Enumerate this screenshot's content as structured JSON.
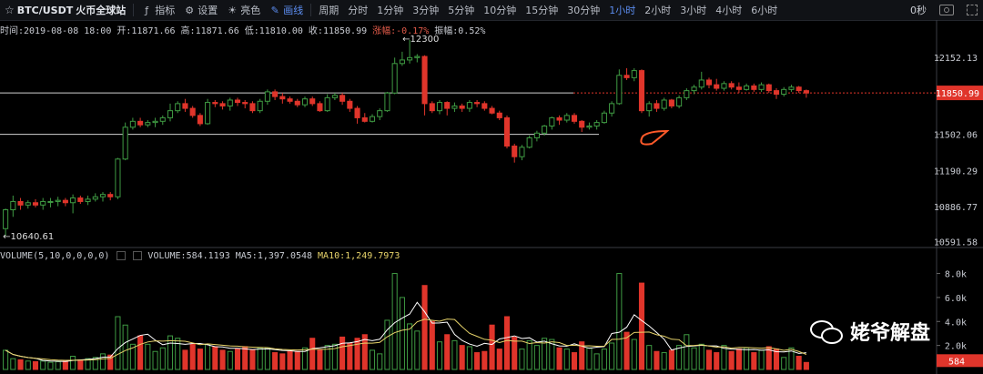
{
  "toolbar": {
    "symbol": "BTC/USDT",
    "exchange": "火币全球站",
    "indicators": "指标",
    "settings": "设置",
    "color": "亮色",
    "draw": "画线",
    "period_label": "周期",
    "periods": [
      "分时",
      "1分钟",
      "3分钟",
      "5分钟",
      "10分钟",
      "15分钟",
      "30分钟",
      "1小时",
      "2小时",
      "3小时",
      "4小时",
      "6小时"
    ],
    "active_period": "1小时",
    "countdown": "0秒"
  },
  "ohlc": {
    "time": "时间:2019-08-08 18:00",
    "open": "开:11871.66",
    "high": "高:11871.66",
    "low": "低:11810.00",
    "close": "收:11850.99",
    "change": "涨幅:-0.17%",
    "amplitude": "振幅:0.52%"
  },
  "volume_legend": {
    "title": "VOLUME(5,10,0,0,0,0)",
    "volume": "VOLUME:584.1193",
    "ma5": "MA5:1,397.0548",
    "ma10": "MA10:1,249.7973"
  },
  "colors": {
    "up": "#3f9b43",
    "down": "#e0352b",
    "ma5": "#ffffff",
    "ma10": "#e7d36a",
    "accent": "#5c8df0",
    "annotation": "#ff5a2a"
  },
  "chart_data": {
    "type": "candlestick",
    "price_axis_ticks": [
      "12152.13",
      "11850.99",
      "11502.06",
      "11190.29",
      "10886.77",
      "10591.58"
    ],
    "current_price": "11850.99",
    "annotations": {
      "high": "←12300",
      "low": "←10640.61"
    },
    "volume_axis_ticks": [
      "8.0k",
      "6.0k",
      "4.0k",
      "2.0k"
    ],
    "current_volume": "584",
    "horizontal_lines": [
      11851,
      11500
    ],
    "candles": [
      [
        10700,
        10860,
        10640,
        10870
      ],
      [
        10860,
        10930,
        10800,
        10980
      ],
      [
        10930,
        10900,
        10860,
        10960
      ],
      [
        10900,
        10920,
        10870,
        10940
      ],
      [
        10920,
        10900,
        10880,
        10950
      ],
      [
        10900,
        10930,
        10860,
        10960
      ],
      [
        10930,
        10930,
        10880,
        10960
      ],
      [
        10930,
        10940,
        10890,
        10970
      ],
      [
        10940,
        10920,
        10890,
        10960
      ],
      [
        10920,
        10960,
        10830,
        10990
      ],
      [
        10960,
        10930,
        10910,
        10980
      ],
      [
        10930,
        10950,
        10900,
        10980
      ],
      [
        10950,
        10970,
        10930,
        11000
      ],
      [
        10970,
        10990,
        10930,
        11010
      ],
      [
        10990,
        10970,
        10940,
        11010
      ],
      [
        10970,
        11290,
        10950,
        11300
      ],
      [
        11290,
        11560,
        11280,
        11600
      ],
      [
        11560,
        11610,
        11540,
        11640
      ],
      [
        11610,
        11580,
        11560,
        11640
      ],
      [
        11580,
        11600,
        11560,
        11620
      ],
      [
        11600,
        11610,
        11560,
        11640
      ],
      [
        11610,
        11640,
        11580,
        11660
      ],
      [
        11640,
        11700,
        11610,
        11760
      ],
      [
        11700,
        11760,
        11680,
        11780
      ],
      [
        11760,
        11720,
        11690,
        11800
      ],
      [
        11720,
        11660,
        11640,
        11740
      ],
      [
        11660,
        11590,
        11570,
        11680
      ],
      [
        11590,
        11770,
        11580,
        11800
      ],
      [
        11770,
        11760,
        11730,
        11790
      ],
      [
        11760,
        11740,
        11710,
        11780
      ],
      [
        11740,
        11790,
        11700,
        11810
      ],
      [
        11790,
        11770,
        11740,
        11810
      ],
      [
        11770,
        11760,
        11720,
        11790
      ],
      [
        11760,
        11700,
        11680,
        11780
      ],
      [
        11700,
        11780,
        11680,
        11800
      ],
      [
        11780,
        11860,
        11750,
        11880
      ],
      [
        11860,
        11820,
        11790,
        11880
      ],
      [
        11820,
        11800,
        11760,
        11850
      ],
      [
        11800,
        11780,
        11760,
        11820
      ],
      [
        11780,
        11750,
        11730,
        11800
      ],
      [
        11750,
        11800,
        11730,
        11820
      ],
      [
        11800,
        11760,
        11740,
        11820
      ],
      [
        11760,
        11700,
        11690,
        11780
      ],
      [
        11700,
        11810,
        11690,
        11840
      ],
      [
        11810,
        11830,
        11790,
        11850
      ],
      [
        11830,
        11780,
        11750,
        11850
      ],
      [
        11780,
        11720,
        11690,
        11800
      ],
      [
        11720,
        11640,
        11590,
        11740
      ],
      [
        11640,
        11610,
        11600,
        11680
      ],
      [
        11610,
        11650,
        11600,
        11670
      ],
      [
        11650,
        11700,
        11620,
        11720
      ],
      [
        11700,
        11850,
        11690,
        11860
      ],
      [
        11850,
        12100,
        11840,
        12150
      ],
      [
        12100,
        12130,
        12080,
        12200
      ],
      [
        12130,
        12150,
        12100,
        12300
      ],
      [
        12150,
        12160,
        12110,
        12180
      ],
      [
        12160,
        11760,
        11660,
        12170
      ],
      [
        11760,
        11700,
        11680,
        11780
      ],
      [
        11700,
        11770,
        11670,
        11790
      ],
      [
        11770,
        11720,
        11660,
        11780
      ],
      [
        11720,
        11740,
        11690,
        11770
      ],
      [
        11740,
        11720,
        11690,
        11760
      ],
      [
        11720,
        11770,
        11690,
        11790
      ],
      [
        11770,
        11760,
        11730,
        11790
      ],
      [
        11760,
        11720,
        11700,
        11780
      ],
      [
        11720,
        11680,
        11670,
        11740
      ],
      [
        11680,
        11640,
        11620,
        11700
      ],
      [
        11640,
        11400,
        11380,
        11660
      ],
      [
        11400,
        11310,
        11260,
        11420
      ],
      [
        11310,
        11390,
        11280,
        11410
      ],
      [
        11390,
        11470,
        11380,
        11490
      ],
      [
        11470,
        11510,
        11440,
        11530
      ],
      [
        11510,
        11570,
        11490,
        11580
      ],
      [
        11570,
        11640,
        11540,
        11650
      ],
      [
        11640,
        11620,
        11580,
        11660
      ],
      [
        11620,
        11660,
        11600,
        11680
      ],
      [
        11660,
        11610,
        11590,
        11680
      ],
      [
        11610,
        11560,
        11520,
        11620
      ],
      [
        11560,
        11570,
        11540,
        11600
      ],
      [
        11570,
        11600,
        11540,
        11620
      ],
      [
        11600,
        11680,
        11590,
        11700
      ],
      [
        11680,
        11760,
        11650,
        11780
      ],
      [
        11760,
        12000,
        11750,
        12050
      ],
      [
        12000,
        11980,
        11960,
        12060
      ],
      [
        11980,
        12040,
        11950,
        12060
      ],
      [
        12040,
        11700,
        11680,
        12050
      ],
      [
        11700,
        11760,
        11650,
        11780
      ],
      [
        11760,
        11720,
        11690,
        11790
      ],
      [
        11720,
        11790,
        11700,
        11810
      ],
      [
        11790,
        11740,
        11720,
        11800
      ],
      [
        11740,
        11810,
        11720,
        11830
      ],
      [
        11810,
        11870,
        11790,
        11890
      ],
      [
        11870,
        11900,
        11840,
        11920
      ],
      [
        11900,
        11960,
        11880,
        12030
      ],
      [
        11960,
        11920,
        11890,
        11980
      ],
      [
        11920,
        11890,
        11870,
        11970
      ],
      [
        11890,
        11930,
        11870,
        11950
      ],
      [
        11930,
        11900,
        11880,
        11950
      ],
      [
        11900,
        11880,
        11850,
        11940
      ],
      [
        11880,
        11910,
        11870,
        11930
      ],
      [
        11910,
        11880,
        11860,
        11930
      ],
      [
        11880,
        11920,
        11860,
        11940
      ],
      [
        11920,
        11870,
        11850,
        11930
      ],
      [
        11870,
        11840,
        11800,
        11890
      ],
      [
        11840,
        11880,
        11820,
        11900
      ],
      [
        11880,
        11900,
        11860,
        11920
      ],
      [
        11900,
        11870,
        11850,
        11910
      ],
      [
        11870,
        11850,
        11810,
        11880
      ]
    ],
    "volumes": [
      1600,
      900,
      800,
      700,
      650,
      700,
      600,
      650,
      700,
      1100,
      800,
      900,
      1000,
      1300,
      1200,
      4400,
      3700,
      2100,
      2800,
      2100,
      1500,
      1800,
      2800,
      2600,
      1600,
      2100,
      1700,
      2100,
      1900,
      1600,
      1500,
      1700,
      1900,
      1600,
      1800,
      1800,
      1400,
      1300,
      1500,
      1500,
      1800,
      2600,
      1600,
      2000,
      2100,
      2700,
      2200,
      2600,
      2900,
      1600,
      1300,
      4100,
      8000,
      6000,
      3800,
      3200,
      7000,
      4000,
      2300,
      2900,
      2400,
      2000,
      1900,
      1400,
      1500,
      3700,
      1700,
      4400,
      2700,
      1700,
      2400,
      2000,
      2600,
      2500,
      1800,
      1700,
      1400,
      2300,
      1800,
      1300,
      1700,
      2200,
      8000,
      3100,
      2500,
      7200,
      2000,
      1500,
      1400,
      1600,
      2000,
      2900,
      1800,
      2100,
      1600,
      1400,
      2000,
      1500,
      1700,
      1800,
      1400,
      1600,
      1900,
      1700,
      1000,
      1800,
      1100,
      584
    ],
    "ma5": [
      1600,
      1250,
      1100,
      1000,
      930,
      750,
      700,
      680,
      660,
      750,
      800,
      830,
      900,
      1020,
      1040,
      1740,
      2240,
      2540,
      2840,
      2940,
      2440,
      2060,
      2200,
      2160,
      2100,
      2160,
      2160,
      2060,
      1900,
      1880,
      1760,
      1760,
      1720,
      1660,
      1700,
      1720,
      1660,
      1580,
      1560,
      1500,
      1500,
      1740,
      1800,
      1900,
      1980,
      2180,
      2220,
      2320,
      2500,
      2400,
      2520,
      3300,
      3900,
      4280,
      4620,
      5600,
      4800,
      3860,
      3880,
      3940,
      2920,
      2420,
      2120,
      1940,
      2180,
      2080,
      2540,
      2660,
      2800,
      2580,
      2640,
      2280,
      2360,
      2140,
      1960,
      1940,
      2140,
      1940,
      1760,
      1860,
      1900,
      3000,
      3100,
      3520,
      4560,
      4080,
      3620,
      3080,
      2520,
      1620,
      1780,
      1920,
      1960,
      2020,
      1960,
      1960,
      1760,
      1700,
      1680,
      1640,
      1660,
      1600,
      1640,
      1480,
      1460,
      1540,
      1340,
      1397
    ],
    "ma10": [
      1600,
      1250,
      1100,
      1000,
      930,
      880,
      820,
      780,
      760,
      770,
      780,
      790,
      820,
      880,
      920,
      1260,
      1580,
      1800,
      2090,
      2290,
      2380,
      2360,
      2400,
      2380,
      2350,
      2210,
      2070,
      2130,
      2080,
      2020,
      1960,
      1940,
      1890,
      1860,
      1840,
      1820,
      1720,
      1670,
      1640,
      1620,
      1640,
      1700,
      1670,
      1690,
      1740,
      1900,
      1990,
      2100,
      2200,
      2190,
      2260,
      2720,
      3070,
      3270,
      3360,
      3970,
      4190,
      4100,
      4020,
      4200,
      4160,
      3560,
      3010,
      2760,
      2510,
      2440,
      2240,
      2420,
      2360,
      2360,
      2160,
      2240,
      2200,
      2300,
      2240,
      2000,
      2020,
      1960,
      1970,
      1930,
      1940,
      2500,
      2520,
      2640,
      3080,
      3100,
      3120,
      2890,
      2770,
      2520,
      2480,
      1980,
      2000,
      2050,
      1950,
      1860,
      1890,
      1770,
      1840,
      1830,
      1800,
      1770,
      1810,
      1720,
      1590,
      1680,
      1500,
      1250
    ]
  }
}
